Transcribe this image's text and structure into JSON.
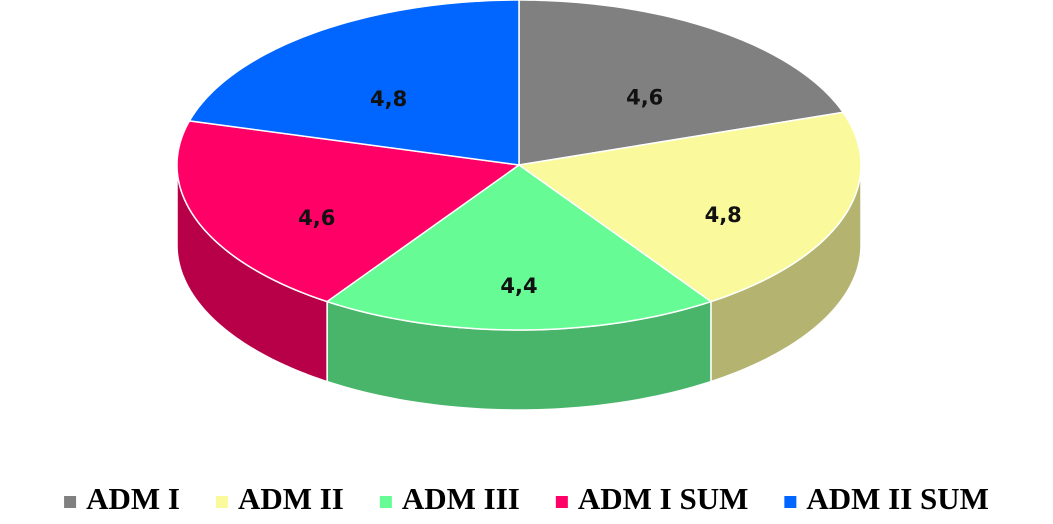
{
  "chart_data": {
    "type": "pie",
    "categories": [
      "ADM I",
      "ADM II",
      "ADM III",
      "ADM I SUM",
      "ADM II SUM"
    ],
    "values": [
      4.6,
      4.8,
      4.4,
      4.6,
      4.8
    ],
    "value_labels": [
      "4,6",
      "4,8",
      "4,4",
      "4,6",
      "4,8"
    ],
    "colors": [
      "#808080",
      "#fafa9c",
      "#66fb94",
      "#ff0066",
      "#0066ff"
    ],
    "legend": "bottom"
  }
}
